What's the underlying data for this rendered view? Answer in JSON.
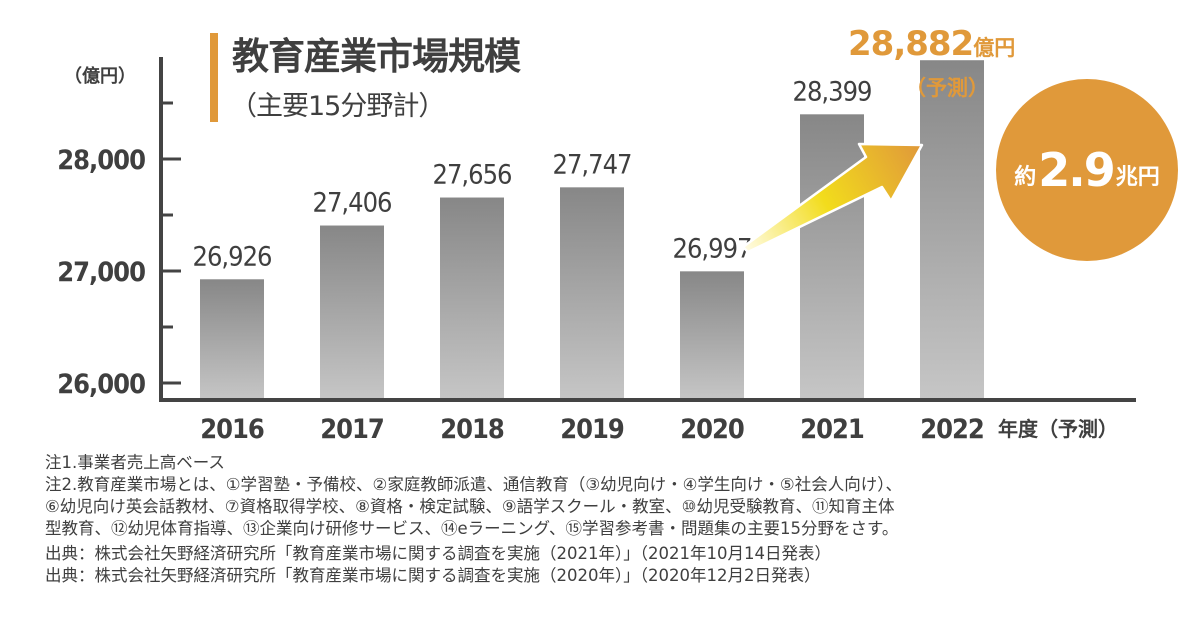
{
  "header": {
    "title": "教育産業市場規模",
    "subtitle": "（主要15分野計）"
  },
  "callout": {
    "value": "28,882",
    "unit": "億円",
    "note": "（予測）",
    "circle_prefix": "約",
    "circle_value": "2.9",
    "circle_suffix": "兆円"
  },
  "colors": {
    "accent": "#e0993a",
    "bar_top": "#878787",
    "bar_bottom": "#c6c6c6",
    "axis": "#444444",
    "text": "#3f3f3f",
    "arrow_start": "#fffbe0",
    "arrow_mid": "#f2dc1c",
    "arrow_end": "#e0993a"
  },
  "chart_data": {
    "type": "bar",
    "title": "教育産業市場規模",
    "subtitle": "（主要15分野計）",
    "ylabel": "（億円）",
    "xlabel_suffix": "年度（予測）",
    "categories": [
      "2016",
      "2017",
      "2018",
      "2019",
      "2020",
      "2021",
      "2022"
    ],
    "values": [
      26926,
      27406,
      27656,
      27747,
      26997,
      28399,
      28882
    ],
    "value_labels": [
      "26,926",
      "27,406",
      "27,656",
      "27,747",
      "26,997",
      "28,399",
      ""
    ],
    "forecast": [
      false,
      false,
      false,
      false,
      false,
      false,
      true
    ],
    "ylim": [
      25850,
      29000
    ],
    "yticks": [
      26000,
      27000,
      28000
    ],
    "ytick_labels": [
      "26,000",
      "27,000",
      "28,000"
    ],
    "minor_yticks": [
      26500,
      27500,
      28500
    ],
    "grid": false,
    "annotation": "arrow from 2020 to 2022"
  },
  "notes": [
    "注1.事業者売上高ベース",
    "注2.教育産業市場とは、①学習塾・予備校、②家庭教師派遣、通信教育（③幼児向け・④学生向け・⑤社会人向け）、",
    "⑥幼児向け英会話教材、⑦資格取得学校、⑧資格・検定試験、⑨語学スクール・教室、⑩幼児受験教育、⑪知育主体",
    "型教育、⑫幼児体育指導、⑬企業向け研修サービス、⑭eラーニング、⑮学習参考書・問題集の主要15分野をさす。"
  ],
  "sources": [
    "出典：株式会社矢野経済研究所「教育産業市場に関する調査を実施（2021年）」（2021年10月14日発表）",
    "出典：株式会社矢野経済研究所「教育産業市場に関する調査を実施（2020年）」（2020年12月2日発表）"
  ]
}
